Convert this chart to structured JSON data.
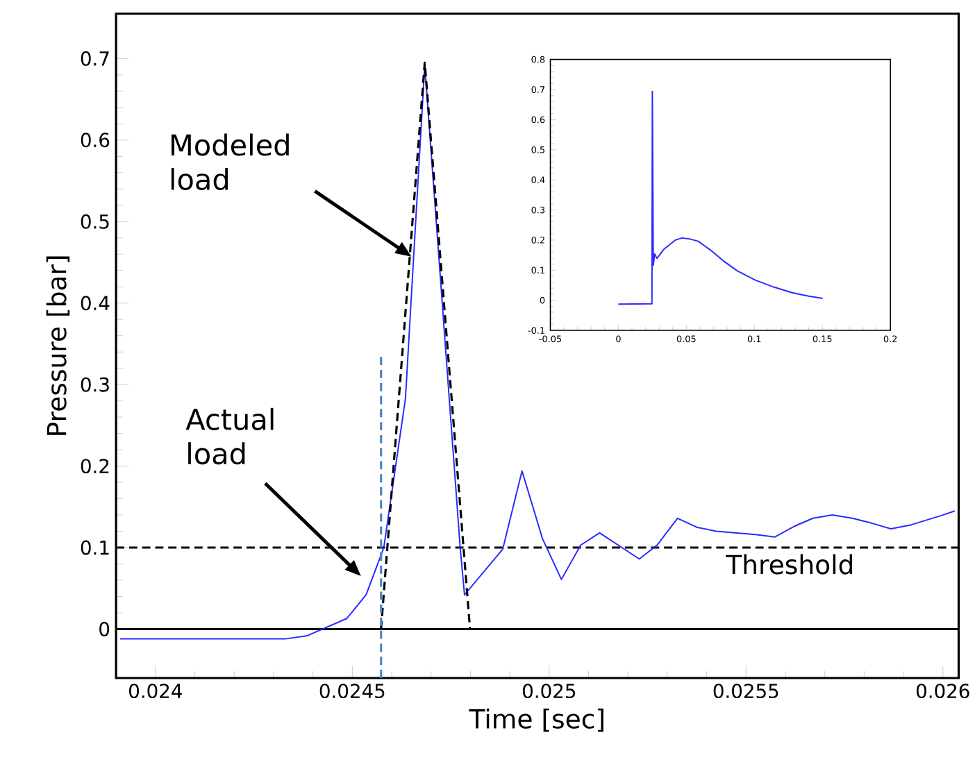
{
  "chart_data": [
    {
      "type": "line",
      "xlabel": "Time [sec]",
      "ylabel": "Pressure [bar]",
      "xlim": [
        0.0239,
        0.02604
      ],
      "ylim": [
        -0.06,
        0.755
      ],
      "xticks": [
        0.024,
        0.0245,
        0.025,
        0.0255,
        0.026
      ],
      "yticks": [
        0,
        0.1,
        0.2,
        0.3,
        0.4,
        0.5,
        0.6,
        0.7
      ],
      "series": [
        {
          "color": "#2a2aff",
          "line_style": "solid",
          "x": [
            0.02391,
            0.02433,
            0.024386,
            0.024486,
            0.024535,
            0.02458,
            0.024635,
            0.024684,
            0.024774,
            0.024785,
            0.024882,
            0.024931,
            0.024983,
            0.025031,
            0.02508,
            0.025128,
            0.025229,
            0.025274,
            0.025326,
            0.025375,
            0.025424,
            0.025524,
            0.025573,
            0.025622,
            0.02567,
            0.025719,
            0.02577,
            0.025819,
            0.025868,
            0.02592,
            0.026,
            0.02603
          ],
          "values": [
            -0.012,
            -0.012,
            -0.008,
            0.013,
            0.042,
            0.1,
            0.283,
            0.692,
            0.1,
            0.042,
            0.098,
            0.194,
            0.111,
            0.061,
            0.103,
            0.118,
            0.086,
            0.103,
            0.136,
            0.125,
            0.12,
            0.116,
            0.113,
            0.126,
            0.136,
            0.14,
            0.136,
            0.13,
            0.123,
            0.128,
            0.14,
            0.145
          ]
        },
        {
          "color": "#000000",
          "line_style": "dashed",
          "x": [
            0.024573,
            0.024684,
            0.024799
          ],
          "values": [
            0,
            0.695,
            0
          ]
        },
        {
          "color": "#4a86c5",
          "line_style": "dashed",
          "x": [
            0.024573,
            0.024573
          ],
          "values": [
            -0.06,
            0.34
          ]
        }
      ],
      "ref_lines": [
        {
          "axis": "y",
          "value": 0,
          "color": "#000000",
          "line_style": "solid"
        },
        {
          "axis": "y",
          "value": 0.1,
          "label": "Threshold",
          "color": "#000000",
          "line_style": "dashed"
        }
      ],
      "annotations": [
        "Modeled load",
        "Actual load"
      ]
    },
    {
      "type": "line",
      "xlim": [
        -0.05,
        0.2
      ],
      "ylim": [
        -0.1,
        0.8
      ],
      "xticks": [
        -0.05,
        0,
        0.05,
        0.1,
        0.15,
        0.2
      ],
      "yticks": [
        -0.1,
        0,
        0.1,
        0.2,
        0.3,
        0.4,
        0.5,
        0.6,
        0.7,
        0.8
      ],
      "series": [
        {
          "color": "#2a2aff",
          "line_style": "solid",
          "x": [
            0,
            0.0247,
            0.025,
            0.0257,
            0.0267,
            0.0284,
            0.0334,
            0.0419,
            0.0469,
            0.052,
            0.0587,
            0.0671,
            0.0772,
            0.0873,
            0.1007,
            0.1142,
            0.1277,
            0.1394,
            0.1502
          ],
          "values": [
            -0.013,
            -0.012,
            0.694,
            0.116,
            0.154,
            0.139,
            0.169,
            0.2,
            0.207,
            0.204,
            0.196,
            0.169,
            0.131,
            0.098,
            0.067,
            0.044,
            0.025,
            0.014,
            0.006
          ]
        }
      ]
    }
  ]
}
